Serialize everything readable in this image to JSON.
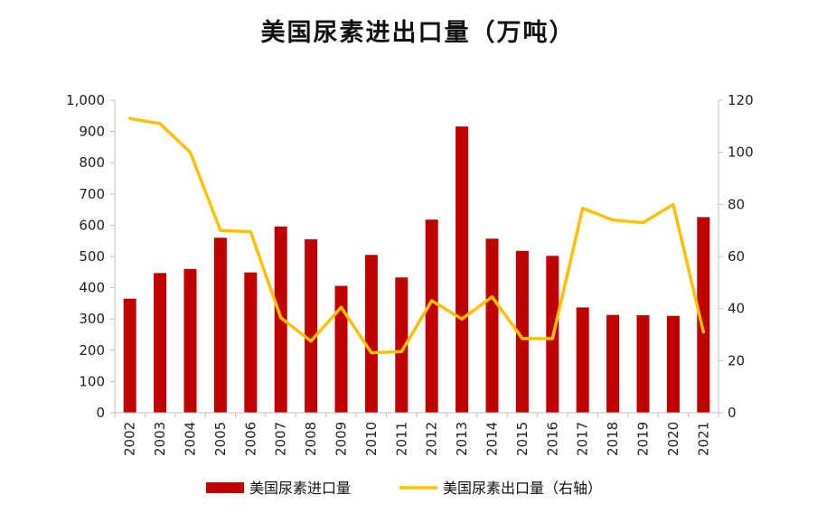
{
  "chart_data": {
    "type": "bar+line",
    "title": "美国尿素进出口量（万吨）",
    "categories": [
      "2002",
      "2003",
      "2004",
      "2005",
      "2006",
      "2007",
      "2008",
      "2009",
      "2010",
      "2011",
      "2012",
      "2013",
      "2014",
      "2015",
      "2016",
      "2017",
      "2018",
      "2019",
      "2020",
      "2021"
    ],
    "series": [
      {
        "name": "美国尿素进口量",
        "type": "bar",
        "axis": "left",
        "color": "#c00000",
        "values": [
          365,
          447,
          460,
          560,
          449,
          596,
          555,
          406,
          505,
          433,
          618,
          916,
          557,
          518,
          502,
          337,
          313,
          312,
          310,
          626
        ]
      },
      {
        "name": "美国尿素出口量（右轴）",
        "type": "line",
        "axis": "right",
        "color": "#ffc000",
        "values": [
          113,
          111,
          100,
          70,
          69.5,
          36.5,
          27.5,
          40.5,
          23,
          23.5,
          43,
          36,
          44.5,
          28.5,
          28.5,
          78.5,
          74,
          73,
          80,
          31
        ]
      }
    ],
    "y_left": {
      "min": 0,
      "max": 1000,
      "ticks": [
        "0",
        "100",
        "200",
        "300",
        "400",
        "500",
        "600",
        "700",
        "800",
        "900",
        "1,000"
      ]
    },
    "y_right": {
      "min": 0,
      "max": 120,
      "ticks": [
        "0",
        "20",
        "40",
        "60",
        "80",
        "100",
        "120"
      ]
    },
    "grid": false,
    "legend_position": "bottom"
  }
}
